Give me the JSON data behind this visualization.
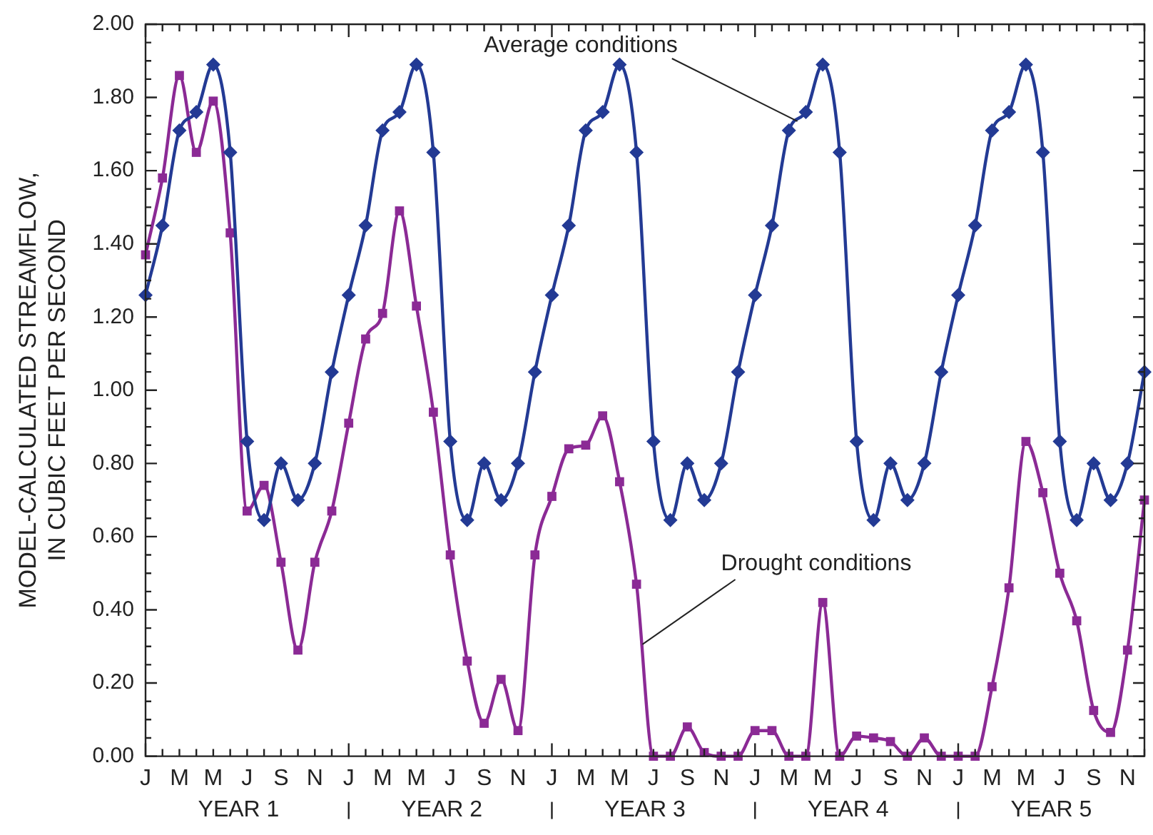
{
  "chart_data": {
    "type": "line",
    "ylabel": "MODEL-CALCULATED STREAMFLOW,\nIN CUBIC FEET PER SECOND",
    "categories": [
      "J",
      null,
      "M",
      null,
      "M",
      null,
      "J",
      null,
      "S",
      null,
      "N",
      null,
      "J",
      null,
      "M",
      null,
      "M",
      null,
      "J",
      null,
      "S",
      null,
      "N",
      null,
      "J",
      null,
      "M",
      null,
      "M",
      null,
      "J",
      null,
      "S",
      null,
      "N",
      null,
      "J",
      null,
      "M",
      null,
      "M",
      null,
      "J",
      null,
      "S",
      null,
      "N",
      null,
      "J",
      null,
      "M",
      null,
      "M",
      null,
      "J",
      null,
      "S",
      null,
      "N",
      null
    ],
    "series": [
      {
        "name": "Average conditions",
        "color": "#233a94",
        "marker": "diamond",
        "values": [
          1.26,
          1.45,
          1.71,
          1.76,
          1.89,
          1.65,
          0.86,
          0.645,
          0.8,
          0.7,
          0.8,
          1.05,
          1.26,
          1.45,
          1.71,
          1.76,
          1.89,
          1.65,
          0.86,
          0.645,
          0.8,
          0.7,
          0.8,
          1.05,
          1.26,
          1.45,
          1.71,
          1.76,
          1.89,
          1.65,
          0.86,
          0.645,
          0.8,
          0.7,
          0.8,
          1.05,
          1.26,
          1.45,
          1.71,
          1.76,
          1.89,
          1.65,
          0.86,
          0.645,
          0.8,
          0.7,
          0.8,
          1.05,
          1.26,
          1.45,
          1.71,
          1.76,
          1.89,
          1.65,
          0.86,
          0.645,
          0.8,
          0.7,
          0.8,
          1.05
        ]
      },
      {
        "name": "Drought conditions",
        "color": "#8b2a95",
        "marker": "square",
        "values": [
          1.37,
          1.58,
          1.86,
          1.65,
          1.79,
          1.43,
          0.67,
          0.74,
          0.53,
          0.29,
          0.53,
          0.67,
          0.91,
          1.14,
          1.21,
          1.49,
          1.23,
          0.94,
          0.55,
          0.26,
          0.09,
          0.21,
          0.07,
          0.55,
          0.71,
          0.84,
          0.85,
          0.93,
          0.75,
          0.47,
          0,
          0,
          0.08,
          0.01,
          0,
          0,
          0.07,
          0.07,
          0,
          0,
          0.42,
          0,
          0.055,
          0.05,
          0.04,
          0,
          0.05,
          0,
          0,
          0,
          0.19,
          0.46,
          0.86,
          0.72,
          0.5,
          0.37,
          0.125,
          0.065,
          0.29,
          0.7
        ]
      }
    ],
    "ylim": [
      0,
      2
    ],
    "yticks": [
      {
        "value": 0,
        "label": "0.00"
      },
      {
        "value": 0.2,
        "label": "0.20"
      },
      {
        "value": 0.4,
        "label": "0.40"
      },
      {
        "value": 0.6,
        "label": "0.60"
      },
      {
        "value": 0.8,
        "label": "0.80"
      },
      {
        "value": 1,
        "label": "1.00"
      },
      {
        "value": 1.2,
        "label": "1.20"
      },
      {
        "value": 1.4,
        "label": "1.40"
      },
      {
        "value": 1.6,
        "label": "1.60"
      },
      {
        "value": 1.8,
        "label": "1.80"
      },
      {
        "value": 2,
        "label": "2.00"
      }
    ],
    "grid": false,
    "legend": false,
    "annotations": [
      "YEAR 1",
      "YEAR 2",
      "YEAR 3",
      "YEAR 4",
      "YEAR 5"
    ]
  }
}
